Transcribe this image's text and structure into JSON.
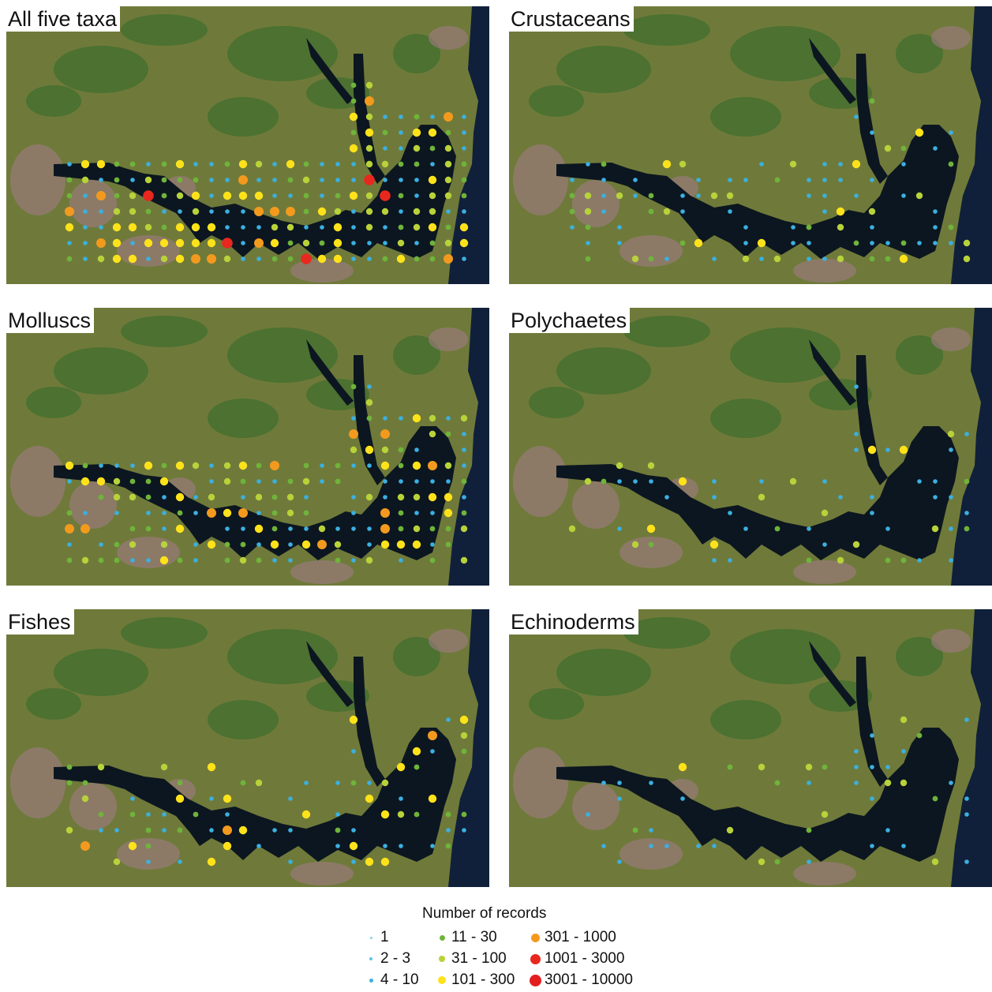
{
  "panels": [
    {
      "title": "All five taxa",
      "density": 1.0
    },
    {
      "title": "Crustaceans",
      "density": 0.45
    },
    {
      "title": "Molluscs",
      "density": 0.8
    },
    {
      "title": "Polychaetes",
      "density": 0.3
    },
    {
      "title": "Fishes",
      "density": 0.35
    },
    {
      "title": "Echinoderms",
      "density": 0.18
    }
  ],
  "legend": {
    "title": "Number of records",
    "classes": [
      {
        "label": "1",
        "color": "#7fd3e6"
      },
      {
        "label": "2 - 3",
        "color": "#5ec3e6"
      },
      {
        "label": "4 - 10",
        "color": "#3bb0e0"
      },
      {
        "label": "11 - 30",
        "color": "#6fb43a"
      },
      {
        "label": "31 - 100",
        "color": "#b8d23a"
      },
      {
        "label": "101 - 300",
        "color": "#ffe21a"
      },
      {
        "label": "301 - 1000",
        "color": "#f39a1e"
      },
      {
        "label": "1001 - 3000",
        "color": "#e8281e"
      },
      {
        "label": "3001 - 10000",
        "color": "#e31e1e"
      }
    ]
  },
  "colors": {
    "land": "#6f7a3a",
    "land_green": "#2f6a2a",
    "urban": "#a07a86",
    "water": "#0c1620",
    "ocean": "#10203a"
  }
}
